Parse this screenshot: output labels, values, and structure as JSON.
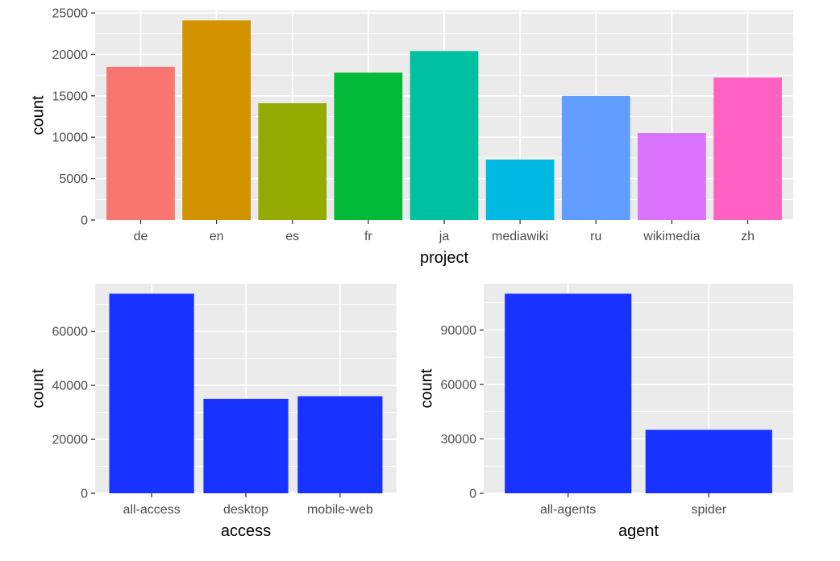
{
  "chart_data": [
    {
      "id": "project",
      "type": "bar",
      "xlabel": "project",
      "ylabel": "count",
      "categories": [
        "de",
        "en",
        "es",
        "fr",
        "ja",
        "mediawiki",
        "ru",
        "wikimedia",
        "zh"
      ],
      "values": [
        18500,
        24100,
        14100,
        17800,
        20400,
        7300,
        15000,
        10500,
        17200
      ],
      "colors": [
        "#F8766D",
        "#D39200",
        "#93AA00",
        "#00BA38",
        "#00C19F",
        "#00B9E3",
        "#619CFF",
        "#DB72FB",
        "#FF61C3"
      ],
      "ylim": [
        0,
        25300
      ],
      "yticks": [
        0,
        5000,
        10000,
        15000,
        20000,
        25000
      ],
      "yticklabels": [
        "0",
        "5000",
        "10000",
        "15000",
        "20000",
        "25000"
      ],
      "grid": true,
      "legend": "none"
    },
    {
      "id": "access",
      "type": "bar",
      "xlabel": "access",
      "ylabel": "count",
      "categories": [
        "all-access",
        "desktop",
        "mobile-web"
      ],
      "values": [
        74000,
        35000,
        36000
      ],
      "colors": [
        "#1833FF",
        "#1833FF",
        "#1833FF"
      ],
      "ylim": [
        0,
        77700
      ],
      "yticks": [
        0,
        20000,
        40000,
        60000
      ],
      "yticklabels": [
        "0",
        "20000",
        "40000",
        "60000"
      ],
      "grid": true,
      "legend": "none"
    },
    {
      "id": "agent",
      "type": "bar",
      "xlabel": "agent",
      "ylabel": "count",
      "categories": [
        "all-agents",
        "spider"
      ],
      "values": [
        110000,
        35000
      ],
      "colors": [
        "#1833FF",
        "#1833FF"
      ],
      "ylim": [
        0,
        115500
      ],
      "yticks": [
        0,
        30000,
        60000,
        90000
      ],
      "yticklabels": [
        "0",
        "30000",
        "60000",
        "90000"
      ],
      "grid": true,
      "legend": "none"
    }
  ]
}
